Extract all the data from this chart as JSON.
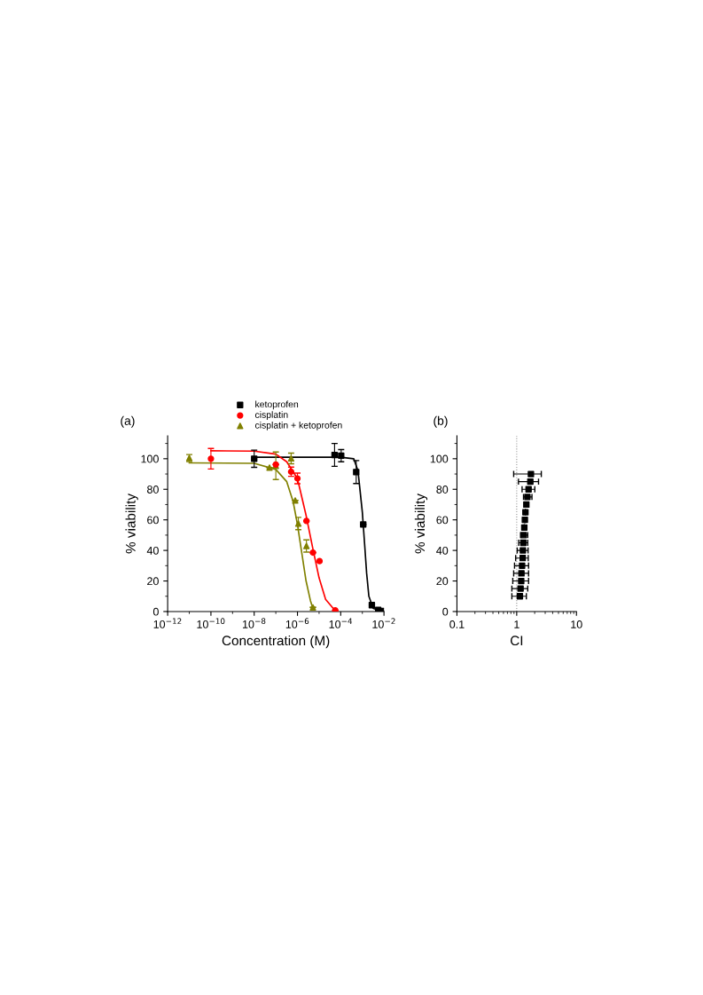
{
  "chart_data": [
    {
      "type": "scatter",
      "xlabel": "Concentration (M)",
      "ylabel": "% viability",
      "log": "x",
      "legend": "top",
      "grid": false,
      "annotations": [
        "(a)"
      ],
      "xlim": [
        1e-12,
        0.01
      ],
      "xticks": [
        {
          "value": 1e-12,
          "label": "10$^{−12}$"
        },
        {
          "value": 1e-10,
          "label": "10$^{−10}$"
        },
        {
          "value": 1e-08,
          "label": "10$^{−8}$"
        },
        {
          "value": 1e-06,
          "label": "10$^{−6}$"
        },
        {
          "value": 0.0001,
          "label": "10$^{−4}$"
        },
        {
          "value": 0.01,
          "label": "10$^{−2}$"
        }
      ],
      "ylim": [
        0,
        115
      ],
      "yticks": [
        0,
        20,
        40,
        60,
        80,
        100
      ],
      "series": [
        {
          "name": "ketoprofen",
          "type": "scatter",
          "marker": "square",
          "color": "#000000",
          "x": [
            1e-08,
            5.2e-05,
            0.000105,
            0.00052,
            0.0011,
            0.00275,
            0.0054,
            0.0089
          ],
          "values": [
            100,
            102.5,
            102,
            91.3,
            57,
            4.2,
            1,
            0.4
          ],
          "errors": [
            5.6,
            7.5,
            4,
            7.5,
            null,
            null,
            null,
            null
          ]
        },
        {
          "name": "cisplatin",
          "type": "scatter",
          "marker": "circle",
          "color": "#ff0000",
          "x": [
            1e-10,
            1e-07,
            5.1e-07,
            1e-06,
            2.6e-06,
            5.2e-06,
            1.05e-05,
            5.6e-05
          ],
          "values": [
            100,
            96.2,
            91.5,
            87.1,
            59.3,
            38.6,
            33,
            0.8
          ],
          "errors": [
            6.7,
            null,
            3,
            3.5,
            null,
            null,
            null,
            null
          ]
        },
        {
          "name": "cisplatin + ketoprofen",
          "type": "scatter",
          "marker": "triangle",
          "color": "#808000",
          "x": [
            1e-11,
            5.1e-08,
            1e-07,
            5.1e-07,
            7.9e-07,
            1.1e-06,
            2.6e-06,
            5.2e-06
          ],
          "values": [
            100.4,
            94.2,
            95.4,
            100.2,
            72.7,
            57.6,
            42.9,
            2.7
          ],
          "errors": [
            2.3,
            null,
            9,
            3.5,
            null,
            4,
            4,
            null
          ]
        },
        {
          "type": "line",
          "color": "#000000",
          "line_style": "solid",
          "marker": "none",
          "x": [
            1e-08,
            0.0001,
            0.0004,
            0.00063,
            0.001,
            0.00126,
            0.00158,
            0.002,
            0.0032,
            0.0089
          ],
          "values": [
            101,
            101,
            100,
            92,
            65,
            45,
            25,
            10,
            2,
            0
          ]
        },
        {
          "type": "line",
          "color": "#ff0000",
          "line_style": "solid",
          "marker": "none",
          "x": [
            1e-10,
            1e-08,
            1e-07,
            3.2e-07,
            1e-06,
            2.5e-06,
            5e-06,
            1e-05,
            2e-05,
            5.6e-05
          ],
          "values": [
            105.2,
            105,
            103,
            98,
            87,
            63,
            42,
            22,
            8,
            0.5
          ]
        },
        {
          "type": "line",
          "color": "#808000",
          "line_style": "solid",
          "marker": "none",
          "x": [
            1e-11,
            1e-08,
            1e-07,
            3.2e-07,
            6.3e-07,
            1e-06,
            1.6e-06,
            2.5e-06,
            4e-06,
            5.2e-06
          ],
          "values": [
            97.3,
            97,
            93,
            85,
            72,
            57,
            38,
            20,
            7,
            2
          ]
        }
      ]
    },
    {
      "type": "scatter",
      "xlabel": "CI",
      "ylabel": "% viability",
      "log": "x",
      "grid": false,
      "legend": false,
      "annotations": [
        "(b)"
      ],
      "xlim": [
        0.1,
        10
      ],
      "xticks": [
        0.1,
        1,
        10
      ],
      "ylim": [
        0,
        115
      ],
      "yticks": [
        0,
        20,
        40,
        60,
        80,
        100
      ],
      "ref_lines": [
        {
          "axis": "x",
          "value": 1,
          "color": "#999999",
          "line_style": "dotted"
        }
      ],
      "series": [
        {
          "type": "scatter",
          "marker": "square",
          "color": "#000000",
          "x": [
            1.73,
            1.69,
            1.58,
            1.51,
            1.45,
            1.4,
            1.37,
            1.34,
            1.31,
            1.29,
            1.27,
            1.26,
            1.23,
            1.2,
            1.19,
            1.16,
            1.13
          ],
          "values": [
            90,
            85,
            80,
            75,
            70,
            65,
            60,
            55,
            50,
            45,
            40,
            35,
            30,
            25,
            20,
            15,
            10
          ],
          "xerrors": [
            [
              0.89,
              2.58
            ],
            [
              1.07,
              2.32
            ],
            [
              1.23,
              2.01
            ],
            [
              1.3,
              1.8
            ],
            null,
            null,
            null,
            null,
            [
              1.16,
              1.53
            ],
            [
              1.08,
              1.53
            ],
            [
              1.02,
              1.55
            ],
            [
              0.96,
              1.56
            ],
            [
              0.92,
              1.58
            ],
            [
              0.89,
              1.58
            ],
            [
              0.86,
              1.58
            ],
            [
              0.83,
              1.53
            ],
            [
              0.83,
              1.45
            ]
          ]
        }
      ]
    }
  ]
}
